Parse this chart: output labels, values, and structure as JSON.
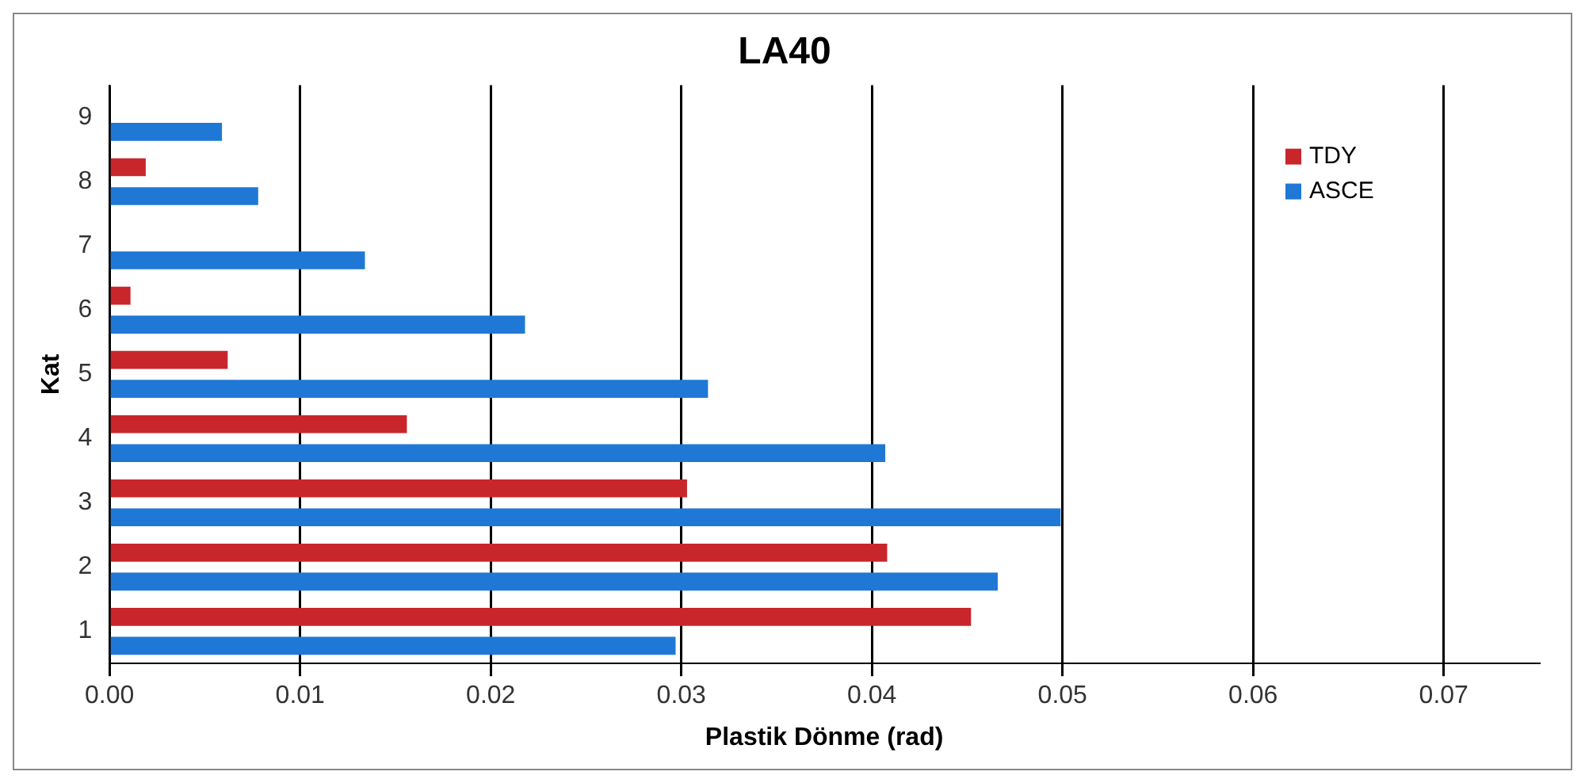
{
  "chart_data": {
    "type": "bar",
    "orientation": "horizontal",
    "title": "LA40",
    "xlabel": "Plastik Dönme (rad)",
    "ylabel": "Kat",
    "categories": [
      "9",
      "8",
      "7",
      "6",
      "5",
      "4",
      "3",
      "2",
      "1"
    ],
    "series": [
      {
        "name": "TDY",
        "color": "#c8262b",
        "values": [
          0,
          0.0019,
          0,
          0.0011,
          0.0062,
          0.0156,
          0.0303,
          0.0408,
          0.0452
        ]
      },
      {
        "name": "ASCE",
        "color": "#1f78d6",
        "values": [
          0.0059,
          0.0078,
          0.0134,
          0.0218,
          0.0314,
          0.0407,
          0.0499,
          0.0466,
          0.0297
        ]
      }
    ],
    "xlim": [
      0,
      0.075
    ],
    "xticks": [
      {
        "value": 0,
        "label": "0.00"
      },
      0.01,
      0.02,
      0.03,
      0.04,
      0.05,
      0.06,
      0.07
    ],
    "grid": "x",
    "legend": "top right"
  }
}
